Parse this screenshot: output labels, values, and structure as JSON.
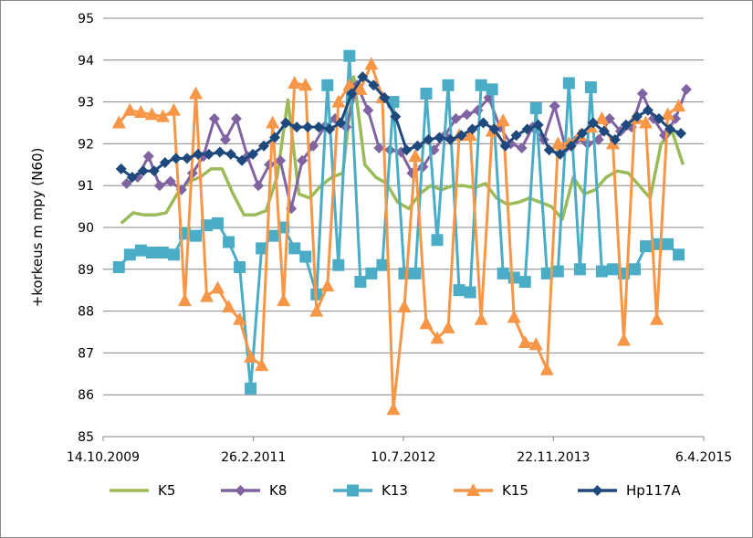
{
  "chart_data": {
    "type": "line",
    "title": "",
    "xlabel": "",
    "ylabel": "+korkeus m mpy (N60)",
    "ylim": [
      85,
      95
    ],
    "y_ticks": [
      85,
      86,
      87,
      88,
      89,
      90,
      91,
      92,
      93,
      94,
      95
    ],
    "x_ticks": [
      "14.10.2009",
      "26.2.2011",
      "10.7.2012",
      "22.11.2013",
      "6.4.2015"
    ],
    "x_tick_values": [
      2009.786,
      2011.156,
      2012.521,
      2013.889,
      2015.258
    ],
    "xlim": [
      2009.786,
      2015.258
    ],
    "grid": "horizontal",
    "legend_position": "bottom",
    "series": [
      {
        "name": "K5",
        "color": "#9BBB59",
        "marker": "none",
        "x": [
          2009.95,
          2010.06,
          2010.16,
          2010.26,
          2010.36,
          2010.46,
          2010.57,
          2010.67,
          2010.77,
          2010.87,
          2010.97,
          2011.07,
          2011.17,
          2011.27,
          2011.37,
          2011.47,
          2011.57,
          2011.67,
          2011.77,
          2011.87,
          2011.97,
          2012.07,
          2012.17,
          2012.27,
          2012.37,
          2012.47,
          2012.57,
          2012.67,
          2012.77,
          2012.87,
          2012.97,
          2013.07,
          2013.17,
          2013.27,
          2013.37,
          2013.47,
          2013.57,
          2013.67,
          2013.77,
          2013.87,
          2013.97,
          2014.07,
          2014.17,
          2014.27,
          2014.37,
          2014.47,
          2014.57,
          2014.67,
          2014.77,
          2014.87,
          2014.97,
          2015.07
        ],
        "y": [
          90.1,
          90.35,
          90.3,
          90.3,
          90.35,
          90.8,
          91.1,
          91.2,
          91.4,
          91.4,
          90.8,
          90.3,
          90.3,
          90.4,
          91.2,
          93.05,
          90.8,
          90.7,
          91.0,
          91.2,
          91.3,
          93.6,
          91.5,
          91.2,
          91.05,
          90.6,
          90.45,
          90.8,
          91.0,
          90.9,
          91.0,
          91.0,
          90.95,
          91.05,
          90.7,
          90.55,
          90.6,
          90.7,
          90.6,
          90.5,
          90.2,
          91.2,
          90.8,
          90.9,
          91.2,
          91.35,
          91.3,
          91.0,
          90.7,
          92.0,
          92.3,
          91.5
        ]
      },
      {
        "name": "K8",
        "color": "#8064A2",
        "marker": "diamond",
        "x": [
          2010.0,
          2010.1,
          2010.2,
          2010.3,
          2010.4,
          2010.5,
          2010.6,
          2010.7,
          2010.8,
          2010.9,
          2011.0,
          2011.1,
          2011.2,
          2011.3,
          2011.4,
          2011.5,
          2011.6,
          2011.7,
          2011.8,
          2011.9,
          2012.0,
          2012.1,
          2012.2,
          2012.3,
          2012.4,
          2012.5,
          2012.6,
          2012.7,
          2012.8,
          2012.9,
          2013.0,
          2013.1,
          2013.2,
          2013.3,
          2013.4,
          2013.5,
          2013.6,
          2013.7,
          2013.8,
          2013.9,
          2014.0,
          2014.1,
          2014.2,
          2014.3,
          2014.4,
          2014.5,
          2014.6,
          2014.7,
          2014.8,
          2014.9,
          2015.0,
          2015.1
        ],
        "y": [
          91.05,
          91.2,
          91.7,
          91.0,
          91.1,
          90.9,
          91.3,
          91.7,
          92.6,
          92.1,
          92.6,
          91.7,
          91.0,
          91.5,
          91.6,
          90.45,
          91.6,
          91.95,
          92.4,
          92.6,
          92.4,
          93.4,
          92.8,
          91.9,
          91.85,
          91.8,
          91.3,
          91.45,
          91.85,
          92.2,
          92.6,
          92.7,
          92.8,
          93.1,
          92.4,
          92.0,
          91.9,
          92.4,
          92.1,
          92.9,
          91.9,
          92.1,
          92.0,
          92.1,
          92.6,
          92.3,
          92.4,
          93.2,
          92.6,
          92.2,
          92.6,
          93.3
        ]
      },
      {
        "name": "K13",
        "color": "#4BACC6",
        "marker": "square",
        "x": [
          2009.93,
          2010.03,
          2010.13,
          2010.23,
          2010.33,
          2010.43,
          2010.53,
          2010.63,
          2010.73,
          2010.83,
          2010.93,
          2011.03,
          2011.13,
          2011.23,
          2011.33,
          2011.43,
          2011.53,
          2011.63,
          2011.73,
          2011.83,
          2011.93,
          2012.03,
          2012.13,
          2012.23,
          2012.33,
          2012.43,
          2012.53,
          2012.63,
          2012.73,
          2012.83,
          2012.93,
          2013.03,
          2013.13,
          2013.23,
          2013.33,
          2013.43,
          2013.53,
          2013.63,
          2013.73,
          2013.83,
          2013.93,
          2014.03,
          2014.13,
          2014.23,
          2014.33,
          2014.43,
          2014.53,
          2014.63,
          2014.73,
          2014.83,
          2014.93,
          2015.03
        ],
        "y": [
          89.05,
          89.35,
          89.45,
          89.4,
          89.4,
          89.35,
          89.85,
          89.8,
          90.05,
          90.1,
          89.65,
          89.05,
          86.15,
          89.5,
          89.8,
          90.0,
          89.5,
          89.3,
          88.4,
          93.4,
          89.1,
          94.1,
          88.7,
          88.9,
          89.1,
          93.0,
          88.9,
          88.9,
          93.2,
          89.7,
          93.4,
          88.5,
          88.45,
          93.4,
          93.3,
          88.9,
          88.8,
          88.7,
          92.85,
          88.9,
          88.95,
          93.45,
          89.0,
          93.35,
          88.95,
          89.0,
          88.9,
          89.0,
          89.55,
          89.6,
          89.6,
          89.35
        ]
      },
      {
        "name": "K15",
        "color": "#F79646",
        "marker": "triangle",
        "x": [
          2009.93,
          2010.03,
          2010.13,
          2010.23,
          2010.33,
          2010.43,
          2010.53,
          2010.63,
          2010.73,
          2010.83,
          2010.93,
          2011.03,
          2011.13,
          2011.23,
          2011.33,
          2011.43,
          2011.53,
          2011.63,
          2011.73,
          2011.83,
          2011.93,
          2012.03,
          2012.13,
          2012.23,
          2012.33,
          2012.43,
          2012.53,
          2012.63,
          2012.73,
          2012.83,
          2012.93,
          2013.03,
          2013.13,
          2013.23,
          2013.33,
          2013.43,
          2013.53,
          2013.63,
          2013.73,
          2013.83,
          2013.93,
          2014.03,
          2014.13,
          2014.23,
          2014.33,
          2014.43,
          2014.53,
          2014.63,
          2014.73,
          2014.83,
          2014.93,
          2015.03
        ],
        "y": [
          92.5,
          92.8,
          92.75,
          92.7,
          92.65,
          92.8,
          88.25,
          93.2,
          88.35,
          88.55,
          88.1,
          87.8,
          86.9,
          86.7,
          92.5,
          88.25,
          93.45,
          93.4,
          88.0,
          88.6,
          93.0,
          93.4,
          93.3,
          93.9,
          93.1,
          85.65,
          88.1,
          91.7,
          87.7,
          87.35,
          87.6,
          92.2,
          92.2,
          87.8,
          92.3,
          92.55,
          87.85,
          87.25,
          87.2,
          86.6,
          92.0,
          92.0,
          92.2,
          92.4,
          92.6,
          92.0,
          87.3,
          92.6,
          92.5,
          87.8,
          92.7,
          92.9
        ]
      },
      {
        "name": "Hp117A",
        "color": "#1F497D",
        "marker": "diamond",
        "x": [
          2009.95,
          2010.05,
          2010.15,
          2010.25,
          2010.35,
          2010.45,
          2010.55,
          2010.65,
          2010.75,
          2010.85,
          2010.95,
          2011.05,
          2011.15,
          2011.25,
          2011.35,
          2011.45,
          2011.55,
          2011.65,
          2011.75,
          2011.85,
          2011.95,
          2012.05,
          2012.15,
          2012.25,
          2012.35,
          2012.45,
          2012.55,
          2012.65,
          2012.75,
          2012.85,
          2012.95,
          2013.05,
          2013.15,
          2013.25,
          2013.35,
          2013.45,
          2013.55,
          2013.65,
          2013.75,
          2013.85,
          2013.95,
          2014.05,
          2014.15,
          2014.25,
          2014.35,
          2014.45,
          2014.55,
          2014.65,
          2014.75,
          2014.85,
          2014.95,
          2015.05
        ],
        "y": [
          91.4,
          91.2,
          91.35,
          91.35,
          91.55,
          91.65,
          91.65,
          91.75,
          91.75,
          91.8,
          91.75,
          91.6,
          91.75,
          91.95,
          92.15,
          92.5,
          92.4,
          92.4,
          92.4,
          92.35,
          92.5,
          93.2,
          93.6,
          93.4,
          93.1,
          92.65,
          91.85,
          91.95,
          92.1,
          92.15,
          92.1,
          92.2,
          92.35,
          92.5,
          92.35,
          91.95,
          92.2,
          92.35,
          92.45,
          91.85,
          91.75,
          91.95,
          92.25,
          92.5,
          92.3,
          92.1,
          92.45,
          92.65,
          92.8,
          92.6,
          92.35,
          92.25
        ]
      }
    ]
  }
}
